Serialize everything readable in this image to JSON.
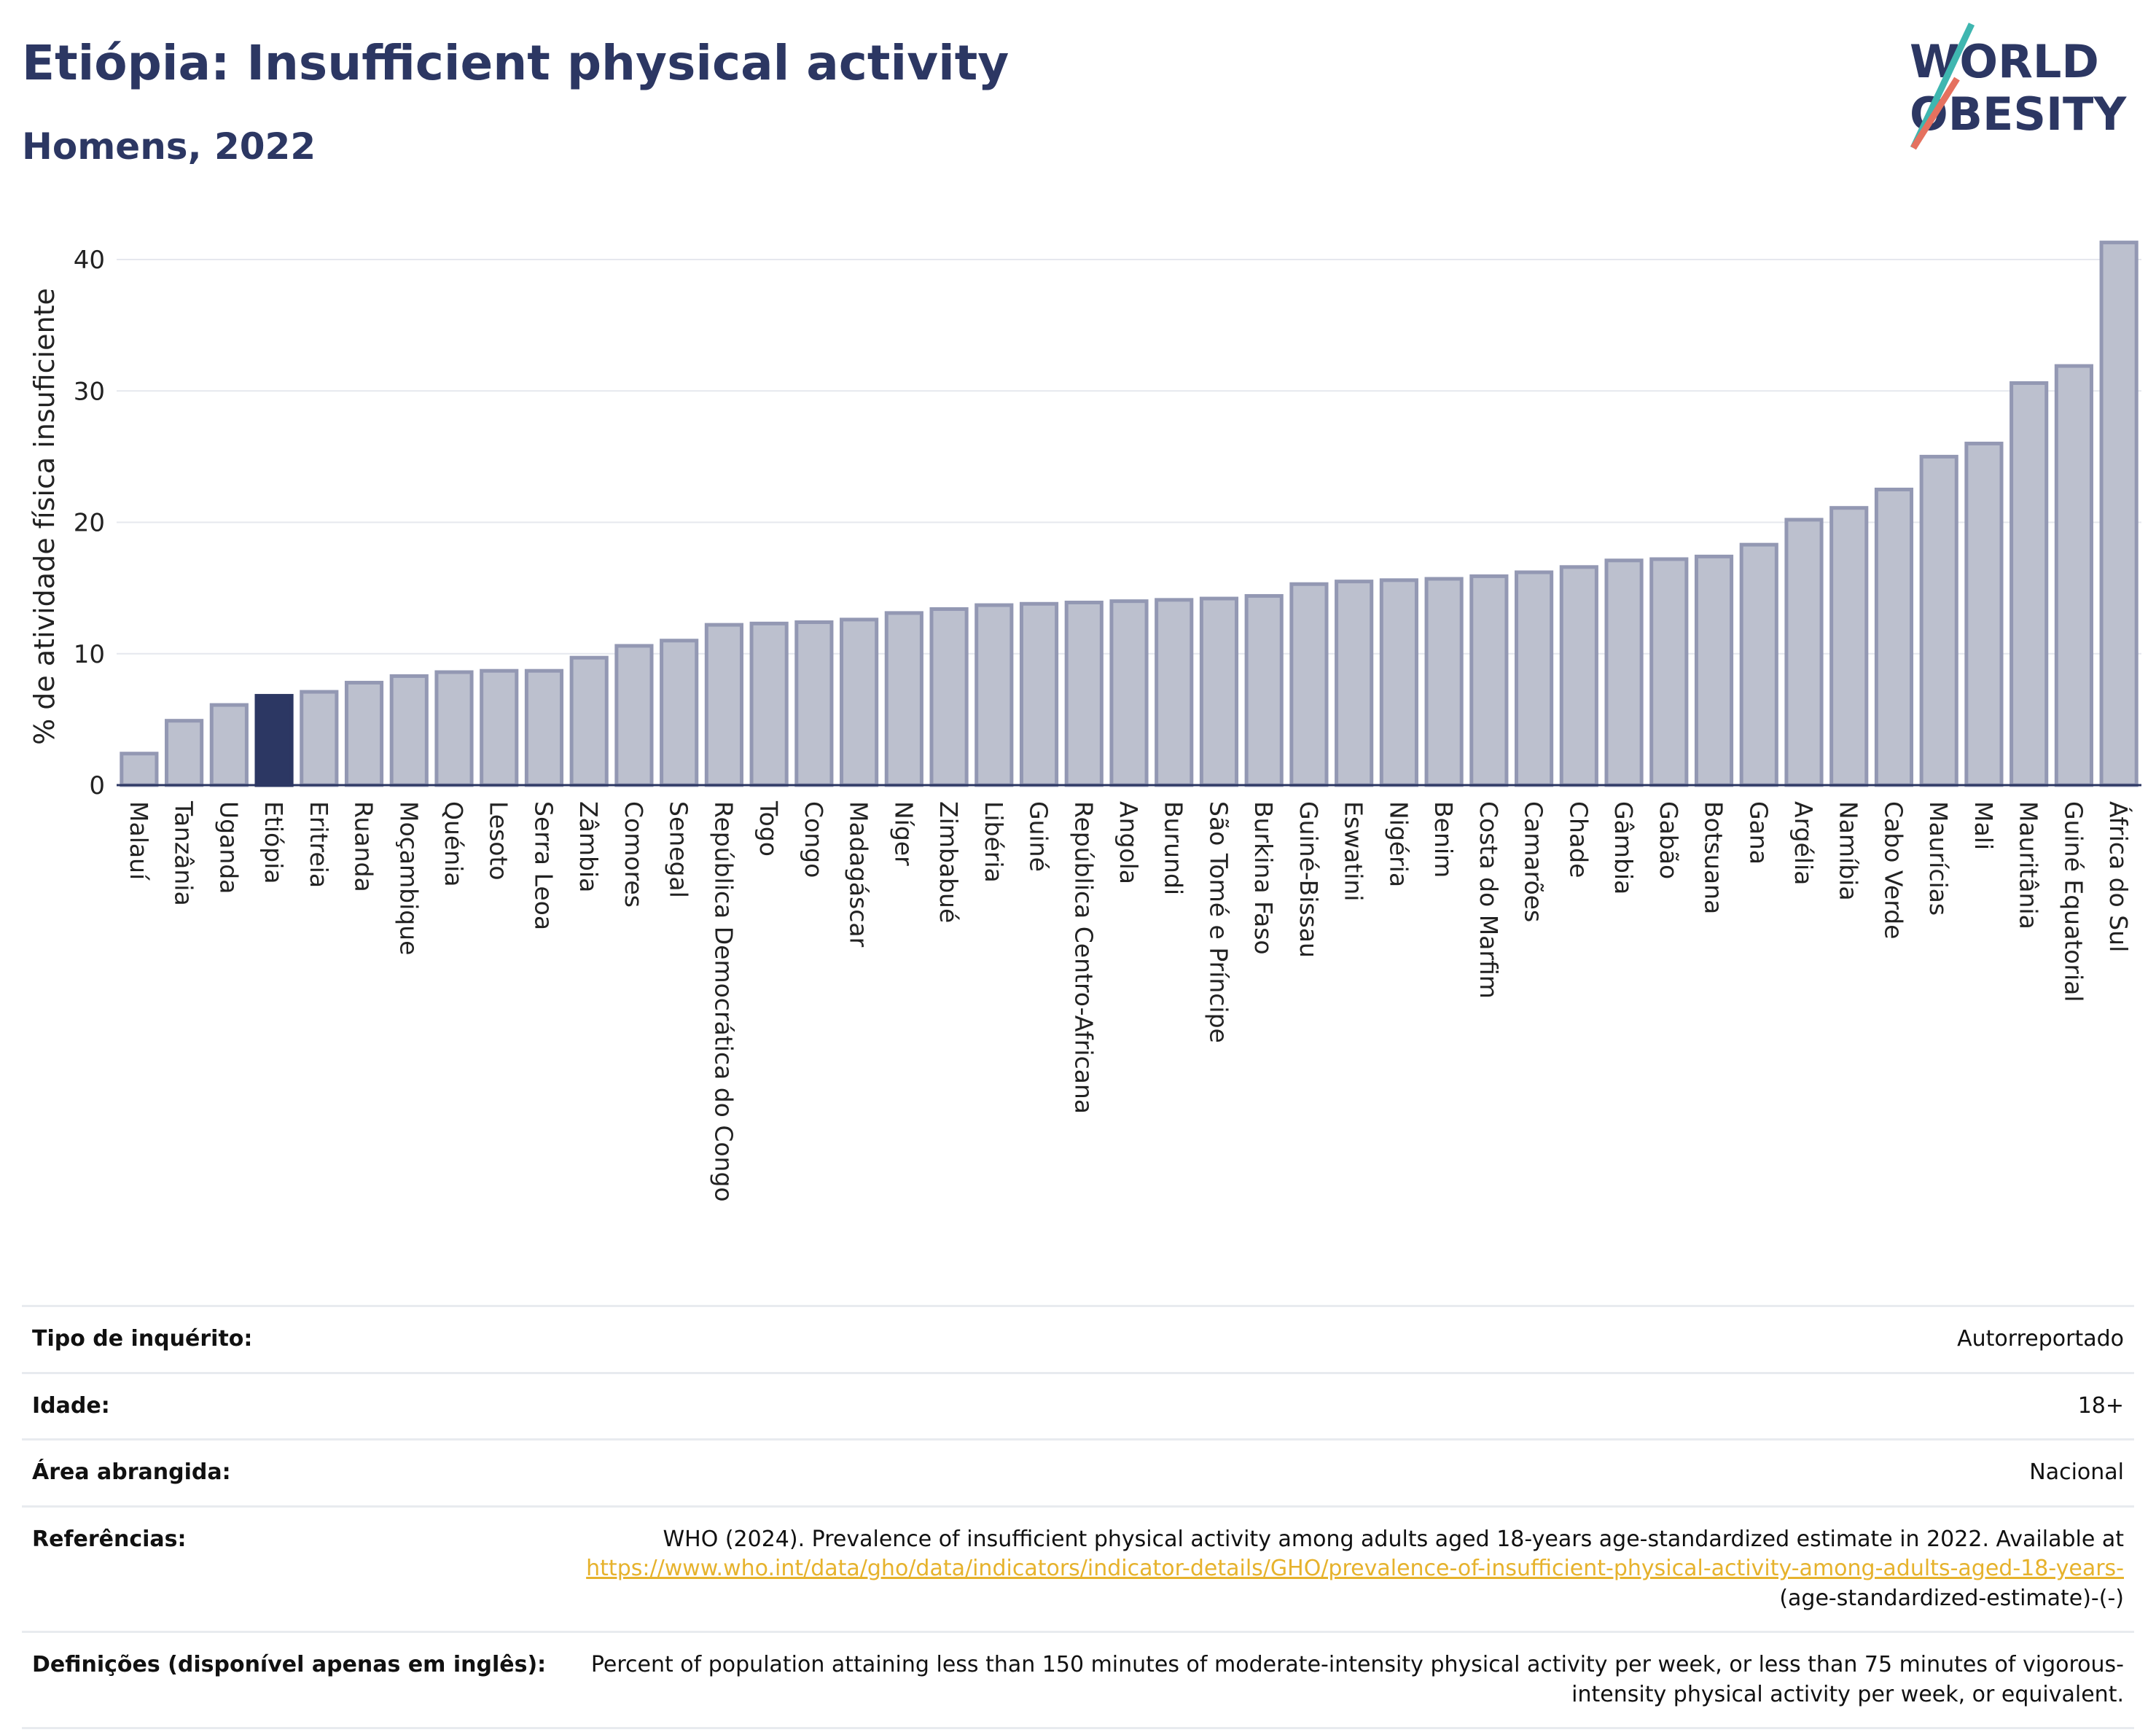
{
  "header": {
    "title": "Etiópia: Insufficient physical activity",
    "subtitle": "Homens, 2022"
  },
  "logo": {
    "line1": "WORLD",
    "line2": "OBESITY"
  },
  "colors": {
    "bar": "#bcc0ce",
    "bar_border": "#9398b3",
    "highlight": "#2c3763",
    "title": "#2c3763",
    "link": "#e6b22c"
  },
  "chart_data": {
    "type": "bar",
    "ylabel": "% de atividade física insuficiente",
    "ylim": [
      0,
      42
    ],
    "yticks": [
      0,
      10,
      20,
      30,
      40
    ],
    "grid": true,
    "highlight": "Etiópia",
    "categories": [
      "Malauí",
      "Tanzânia",
      "Uganda",
      "Etiópia",
      "Eritreia",
      "Ruanda",
      "Moçambique",
      "Quénia",
      "Lesoto",
      "Serra Leoa",
      "Zâmbia",
      "Comores",
      "Senegal",
      "República Democrática do Congo",
      "Togo",
      "Congo",
      "Madagáscar",
      "Níger",
      "Zimbabué",
      "Libéria",
      "Guiné",
      "República Centro-Africana",
      "Angola",
      "Burundi",
      "São Tomé e Príncipe",
      "Burkina Faso",
      "Guiné-Bissau",
      "Eswatini",
      "Nigéria",
      "Benim",
      "Costa do Marfim",
      "Camarões",
      "Chade",
      "Gâmbia",
      "Gabão",
      "Botsuana",
      "Gana",
      "Argélia",
      "Namíbia",
      "Cabo Verde",
      "Maurícias",
      "Mali",
      "Mauritânia",
      "Guiné Equatorial",
      "África do Sul"
    ],
    "values": [
      2.4,
      4.9,
      6.1,
      6.8,
      7.1,
      7.8,
      8.3,
      8.6,
      8.7,
      8.7,
      9.7,
      10.6,
      11.0,
      12.2,
      12.3,
      12.4,
      12.6,
      13.1,
      13.4,
      13.7,
      13.8,
      13.9,
      14.0,
      14.1,
      14.2,
      14.4,
      15.3,
      15.5,
      15.6,
      15.7,
      15.9,
      16.2,
      16.6,
      17.1,
      17.2,
      17.4,
      18.3,
      20.2,
      21.1,
      22.5,
      25.0,
      26.0,
      30.6,
      31.9,
      41.3
    ]
  },
  "info": {
    "rows": [
      {
        "label": "Tipo de inquérito:",
        "value": "Autorreportado"
      },
      {
        "label": "Idade:",
        "value": "18+"
      },
      {
        "label": "Área abrangida:",
        "value": "Nacional"
      }
    ],
    "references": {
      "label": "Referências:",
      "text": "WHO (2024). Prevalence of insufficient physical activity among adults aged 18-years age-standardized estimate in 2022. Available at",
      "link": "https://www.who.int/data/gho/data/indicators/indicator-details/GHO/prevalence-of-insufficient-physical-activity-among-adults-aged-18-years-",
      "suffix": "(age-standardized-estimate)-(-)"
    },
    "definitions": {
      "label": "Definições (disponível apenas em inglês):",
      "value": "Percent of population attaining less than 150 minutes of moderate-intensity physical activity per week, or less than 75 minutes of vigorous-intensity physical activity per week, or equivalent."
    }
  }
}
